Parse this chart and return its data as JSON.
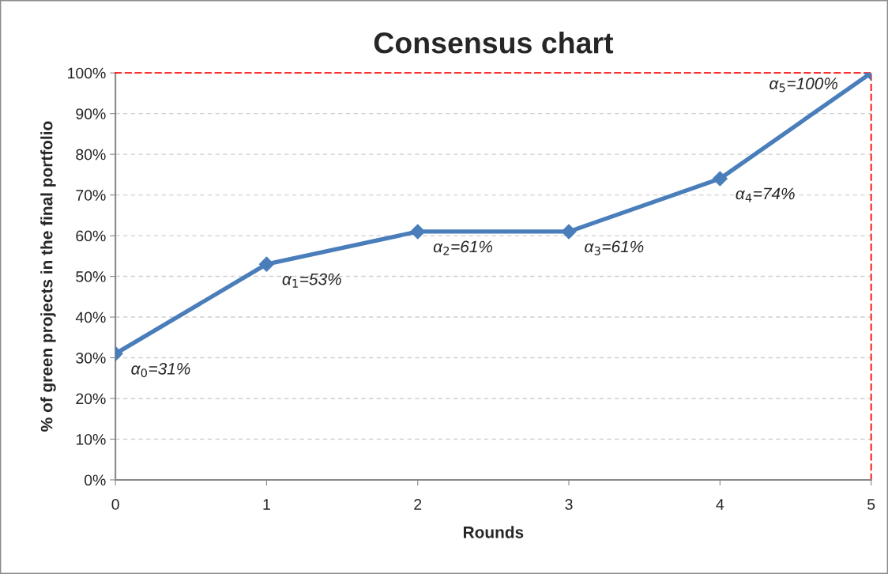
{
  "chart_data": {
    "type": "line",
    "title": "Consensus chart",
    "xlabel": "Rounds",
    "ylabel": "% of green projects in the final portfolio",
    "x": [
      0,
      1,
      2,
      3,
      4,
      5
    ],
    "series": [
      {
        "color": "#4a7ebb",
        "values": [
          31,
          53,
          61,
          61,
          74,
          100
        ],
        "value_labels": [
          "α$_{0}$=31%",
          "α$_{1}$=53%",
          "α$_{2}$=61%",
          "α$_{3}$=61%",
          "α$_{4}$=74%",
          "α$_{5}$=100%"
        ]
      }
    ],
    "xlim": [
      0,
      5
    ],
    "xticks": [
      0,
      1,
      2,
      3,
      4,
      5
    ],
    "ylim": [
      0,
      100
    ],
    "yticks": [
      {
        "value": 0,
        "label": "0%"
      },
      {
        "value": 10,
        "label": "10%"
      },
      {
        "value": 20,
        "label": "20%"
      },
      {
        "value": 30,
        "label": "30%"
      },
      {
        "value": 40,
        "label": "40%"
      },
      {
        "value": 50,
        "label": "50%"
      },
      {
        "value": 60,
        "label": "60%"
      },
      {
        "value": 70,
        "label": "70%"
      },
      {
        "value": 80,
        "label": "80%"
      },
      {
        "value": 90,
        "label": "90%"
      },
      {
        "value": 100,
        "label": "100%"
      }
    ],
    "grid": "y",
    "marker": "diamond",
    "line_style": "solid"
  }
}
